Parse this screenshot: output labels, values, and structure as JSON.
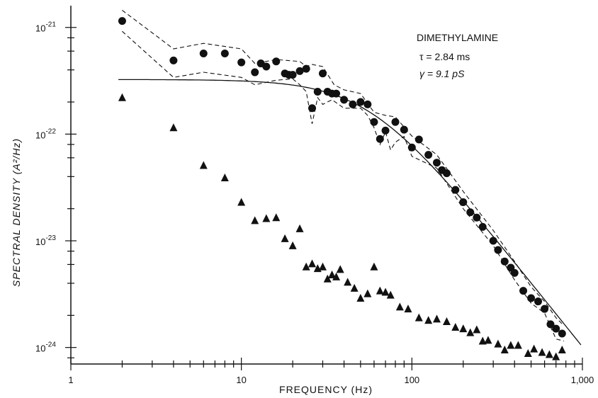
{
  "chart_data": {
    "type": "scatter",
    "xscale": "log",
    "yscale": "log",
    "xlim": [
      1,
      1000
    ],
    "ylim": [
      7e-25,
      1.6e-21
    ],
    "grid": false,
    "xlabel": "FREQUENCY (Hz)",
    "ylabel": "SPECTRAL DENSITY (A²/Hz)",
    "x_tick_labels": [
      {
        "value": 1,
        "label": "1"
      },
      {
        "value": 10,
        "label": "10"
      },
      {
        "value": 100,
        "label": "100"
      },
      {
        "value": 1000,
        "label": "1,000"
      }
    ],
    "y_tick_labels": [
      {
        "value": 1e-21,
        "base": "10",
        "exp": "-21"
      },
      {
        "value": 1e-22,
        "base": "10",
        "exp": "-22"
      },
      {
        "value": 1e-23,
        "base": "10",
        "exp": "-23"
      },
      {
        "value": 1e-24,
        "base": "10",
        "exp": "-24"
      }
    ],
    "annotation": {
      "title": "DIMETHYLAMINE",
      "tau": "τ = 2.84 ms",
      "gamma": "γ = 9.1 pS"
    },
    "series": [
      {
        "marker": "circle",
        "color": "#111111",
        "points": [
          [
            2,
            1.15e-21
          ],
          [
            4,
            4.9e-22
          ],
          [
            6,
            5.7e-22
          ],
          [
            8,
            5.7e-22
          ],
          [
            10,
            4.7e-22
          ],
          [
            12,
            3.8e-22
          ],
          [
            13,
            4.6e-22
          ],
          [
            14,
            4.3e-22
          ],
          [
            16,
            4.8e-22
          ],
          [
            18,
            3.7e-22
          ],
          [
            19,
            3.6e-22
          ],
          [
            20,
            3.6e-22
          ],
          [
            22,
            3.9e-22
          ],
          [
            24,
            4.1e-22
          ],
          [
            26,
            1.75e-22
          ],
          [
            28,
            2.5e-22
          ],
          [
            30,
            3.7e-22
          ],
          [
            32,
            2.5e-22
          ],
          [
            34,
            2.4e-22
          ],
          [
            36,
            2.4e-22
          ],
          [
            40,
            2.1e-22
          ],
          [
            45,
            1.9e-22
          ],
          [
            50,
            2e-22
          ],
          [
            55,
            1.9e-22
          ],
          [
            60,
            1.3e-22
          ],
          [
            65,
            9e-23
          ],
          [
            70,
            1.08e-22
          ],
          [
            80,
            1.3e-22
          ],
          [
            90,
            1.1e-22
          ],
          [
            100,
            7.5e-23
          ],
          [
            110,
            8.9e-23
          ],
          [
            125,
            6.4e-23
          ],
          [
            140,
            5.4e-23
          ],
          [
            150,
            4.6e-23
          ],
          [
            160,
            4.3e-23
          ],
          [
            180,
            3e-23
          ],
          [
            200,
            2.3e-23
          ],
          [
            220,
            1.85e-23
          ],
          [
            240,
            1.65e-23
          ],
          [
            260,
            1.35e-23
          ],
          [
            300,
            1e-23
          ],
          [
            320,
            8.2e-24
          ],
          [
            350,
            6.4e-24
          ],
          [
            380,
            5.6e-24
          ],
          [
            400,
            5e-24
          ],
          [
            450,
            3.4e-24
          ],
          [
            500,
            2.9e-24
          ],
          [
            550,
            2.7e-24
          ],
          [
            600,
            2.3e-24
          ],
          [
            650,
            1.65e-24
          ],
          [
            700,
            1.5e-24
          ],
          [
            760,
            1.35e-24
          ]
        ]
      },
      {
        "marker": "triangle",
        "color": "#111111",
        "points": [
          [
            2,
            2.2e-22
          ],
          [
            4,
            1.15e-22
          ],
          [
            6,
            5.1e-23
          ],
          [
            8,
            3.9e-23
          ],
          [
            10,
            2.3e-23
          ],
          [
            12,
            1.55e-23
          ],
          [
            14,
            1.62e-23
          ],
          [
            16,
            1.65e-23
          ],
          [
            18,
            1.05e-23
          ],
          [
            20,
            9e-24
          ],
          [
            22,
            1.3e-23
          ],
          [
            24,
            5.7e-24
          ],
          [
            26,
            6.1e-24
          ],
          [
            28,
            5.5e-24
          ],
          [
            30,
            5.7e-24
          ],
          [
            32,
            4.4e-24
          ],
          [
            34,
            4.8e-24
          ],
          [
            36,
            4.6e-24
          ],
          [
            38,
            5.4e-24
          ],
          [
            42,
            4.1e-24
          ],
          [
            46,
            3.6e-24
          ],
          [
            50,
            2.9e-24
          ],
          [
            55,
            3.2e-24
          ],
          [
            60,
            5.7e-24
          ],
          [
            65,
            3.4e-24
          ],
          [
            70,
            3.3e-24
          ],
          [
            75,
            3.1e-24
          ],
          [
            85,
            2.4e-24
          ],
          [
            95,
            2.3e-24
          ],
          [
            110,
            1.9e-24
          ],
          [
            125,
            1.8e-24
          ],
          [
            140,
            1.85e-24
          ],
          [
            160,
            1.75e-24
          ],
          [
            180,
            1.55e-24
          ],
          [
            200,
            1.5e-24
          ],
          [
            220,
            1.38e-24
          ],
          [
            240,
            1.47e-24
          ],
          [
            260,
            1.15e-24
          ],
          [
            280,
            1.17e-24
          ],
          [
            320,
            1.08e-24
          ],
          [
            350,
            9.5e-25
          ],
          [
            380,
            1.05e-24
          ],
          [
            420,
            1.05e-24
          ],
          [
            480,
            8.8e-25
          ],
          [
            520,
            9.7e-25
          ],
          [
            580,
            9e-25
          ],
          [
            640,
            8.6e-25
          ],
          [
            700,
            8.2e-25
          ],
          [
            760,
            9.5e-25
          ]
        ]
      }
    ],
    "fit_curve": {
      "type": "lorentzian",
      "S0": 3.25e-22,
      "fc": 56,
      "x_range": [
        1.9,
        980
      ]
    },
    "envelopes": [
      {
        "style": "dashed",
        "points": [
          [
            2,
            1.45e-21
          ],
          [
            4,
            6.3e-22
          ],
          [
            6,
            7.1e-22
          ],
          [
            10,
            6.3e-22
          ],
          [
            12,
            4.6e-22
          ],
          [
            16,
            5e-22
          ],
          [
            22,
            4.8e-22
          ],
          [
            24,
            4.3e-22
          ],
          [
            26,
            4.5e-22
          ],
          [
            30,
            4.3e-22
          ],
          [
            35,
            2.9e-22
          ],
          [
            40,
            2.6e-22
          ],
          [
            50,
            2.4e-22
          ],
          [
            60,
            1.6e-22
          ],
          [
            70,
            1.5e-22
          ],
          [
            80,
            1.45e-22
          ],
          [
            100,
            9.6e-23
          ],
          [
            140,
            6.4e-23
          ],
          [
            200,
            2.9e-23
          ],
          [
            300,
            1.25e-23
          ],
          [
            400,
            6.4e-24
          ],
          [
            500,
            3.7e-24
          ],
          [
            600,
            2.7e-24
          ],
          [
            700,
            1.9e-24
          ],
          [
            780,
            1.6e-24
          ]
        ]
      },
      {
        "style": "dashed",
        "points": [
          [
            2,
            9.2e-22
          ],
          [
            4,
            3.4e-22
          ],
          [
            6,
            3.8e-22
          ],
          [
            10,
            3.4e-22
          ],
          [
            12,
            2.9e-22
          ],
          [
            16,
            3.2e-22
          ],
          [
            20,
            3.3e-22
          ],
          [
            22,
            2.9e-22
          ],
          [
            24,
            2.5e-22
          ],
          [
            26,
            1.25e-22
          ],
          [
            28,
            2.2e-22
          ],
          [
            30,
            1.9e-22
          ],
          [
            34,
            2.1e-22
          ],
          [
            40,
            1.75e-22
          ],
          [
            50,
            1.75e-22
          ],
          [
            55,
            1.5e-22
          ],
          [
            60,
            1.15e-22
          ],
          [
            65,
            8e-23
          ],
          [
            70,
            1.05e-22
          ],
          [
            75,
            7.1e-23
          ],
          [
            80,
            8.4e-23
          ],
          [
            90,
            9.5e-23
          ],
          [
            100,
            6.2e-23
          ],
          [
            140,
            4.8e-23
          ],
          [
            200,
            2e-23
          ],
          [
            300,
            9e-24
          ],
          [
            400,
            4.3e-24
          ],
          [
            500,
            2.6e-24
          ],
          [
            600,
            2.1e-24
          ],
          [
            700,
            1.2e-24
          ],
          [
            780,
            1.15e-24
          ]
        ]
      }
    ]
  }
}
